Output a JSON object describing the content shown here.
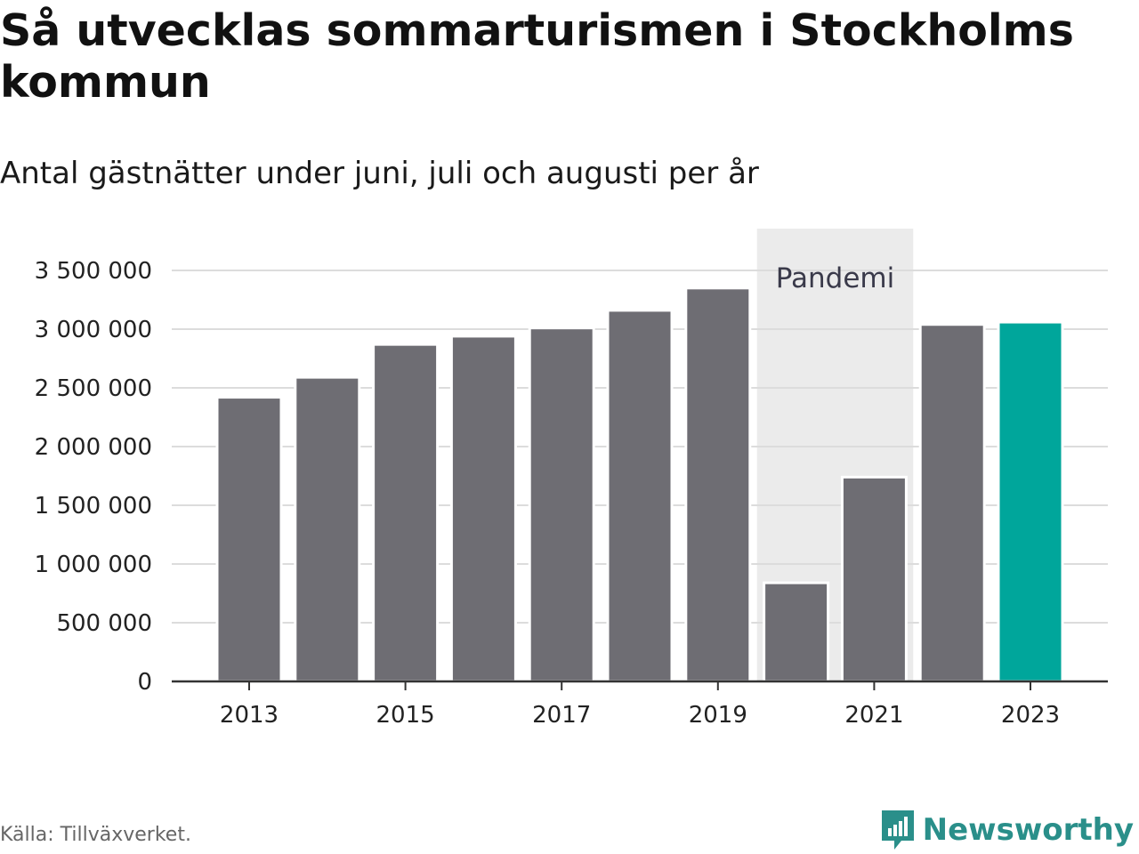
{
  "title": "Så utvecklas sommarturismen i Stockholms kommun",
  "subtitle": "Antal gästnätter under juni, juli och augusti per år",
  "source": "Källa: Tillväxverket.",
  "brand": "Newsworthy",
  "colors": {
    "bar": "#6e6d73",
    "highlight": "#00a69b",
    "band": "#ebebeb",
    "grid": "#dcdcdc",
    "brand": "#2a8f8a"
  },
  "chart_data": {
    "type": "bar",
    "x": [
      2013,
      2014,
      2015,
      2016,
      2017,
      2018,
      2019,
      2020,
      2021,
      2022,
      2023
    ],
    "values": [
      2420000,
      2590000,
      2870000,
      2940000,
      3010000,
      3160000,
      3350000,
      840000,
      1740000,
      3040000,
      3060000
    ],
    "highlight_x": 2023,
    "x_ticks": [
      "2013",
      "2015",
      "2017",
      "2019",
      "2021",
      "2023"
    ],
    "y_ticks": [
      "0",
      "500 000",
      "1 000 000",
      "1 500 000",
      "2 000 000",
      "2 500 000",
      "3 000 000",
      "3 500 000"
    ],
    "ylim": [
      0,
      3500000
    ],
    "grid": true,
    "annotation": {
      "label": "Pandemi",
      "x_from": 2020,
      "x_to": 2021
    }
  }
}
